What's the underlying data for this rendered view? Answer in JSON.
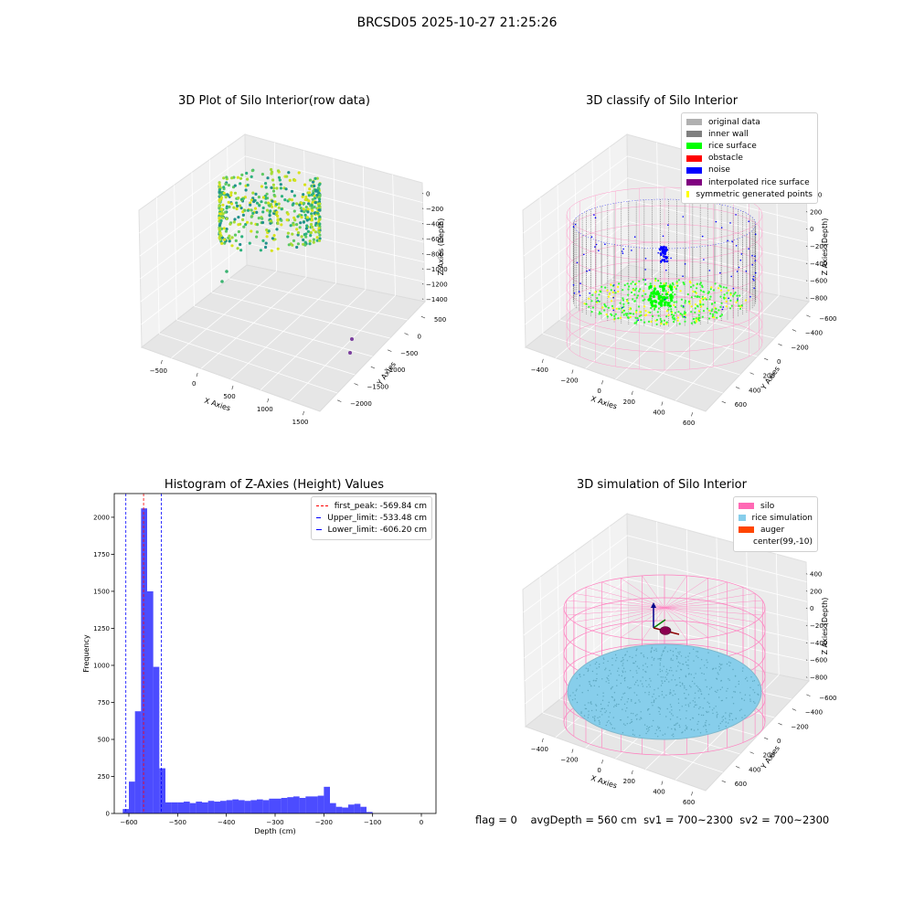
{
  "suptitle": "BRCSD05 2025-10-27 21:25:26",
  "panels": {
    "raw": {
      "title": "3D Plot of Silo Interior(row data)",
      "xlabel": "X Axies",
      "ylabel": "Y Axies",
      "zlabel": "Z Axies (Depth)",
      "xticks": [
        "−500",
        "0",
        "500",
        "1000",
        "1500"
      ],
      "yticks": [
        "500",
        "0",
        "−500",
        "−1000",
        "−1500",
        "−2000"
      ],
      "zticks": [
        "0",
        "−200",
        "−400",
        "−600",
        "−800",
        "−1000",
        "−1200",
        "−1400"
      ]
    },
    "classify": {
      "title": "3D classify of Silo Interior",
      "xlabel": "X Axies",
      "ylabel": "Y Axies",
      "zlabel": "Z Axies (Depth)",
      "xticks": [
        "−400",
        "−200",
        "0",
        "200",
        "400",
        "600"
      ],
      "yticks": [
        "600",
        "400",
        "200",
        "0",
        "−200",
        "−400",
        "−600"
      ],
      "zticks": [
        "400",
        "200",
        "0",
        "−200",
        "−400",
        "−600",
        "−800"
      ],
      "legend": [
        {
          "label": "original data",
          "color": "#b0b0b0"
        },
        {
          "label": "inner wall",
          "color": "#808080"
        },
        {
          "label": "rice surface",
          "color": "#00ff00"
        },
        {
          "label": "obstacle",
          "color": "#ff0000"
        },
        {
          "label": "noise",
          "color": "#0000ff"
        },
        {
          "label": "interpolated rice surface",
          "color": "#800080"
        },
        {
          "label": "symmetric generated points",
          "color": "#ffff00"
        }
      ]
    },
    "sim": {
      "title": "3D simulation of Silo Interior",
      "xlabel": "X Axies",
      "ylabel": "Y Axies",
      "zlabel": "Z Axies (Depth)",
      "xticks": [
        "−400",
        "−200",
        "0",
        "200",
        "400",
        "600"
      ],
      "yticks": [
        "600",
        "400",
        "200",
        "0",
        "−200",
        "−400",
        "−600"
      ],
      "zticks": [
        "400",
        "200",
        "0",
        "−200",
        "−400",
        "−600",
        "−800"
      ],
      "legend": [
        {
          "label": "silo",
          "color": "#ff69b4"
        },
        {
          "label": "rice simulation",
          "color": "#87ceeb"
        },
        {
          "label": "auger",
          "color": "#ff4500"
        },
        {
          "label": "center(99,-10)",
          "color": "#ffffff"
        }
      ]
    }
  },
  "chart_data": {
    "type": "bar",
    "title": "Histogram of Z-Axies (Height) Values",
    "xlabel": "Depth (cm)",
    "ylabel": "Frequency",
    "xlim": [
      -630,
      30
    ],
    "ylim": [
      0,
      2160
    ],
    "xticks": [
      -600,
      -500,
      -400,
      -300,
      -200,
      -100,
      0
    ],
    "yticks": [
      0,
      250,
      500,
      750,
      1000,
      1250,
      1500,
      1750,
      2000
    ],
    "bin_width": 12.5,
    "bin_start": -612.5,
    "values": [
      30,
      215,
      690,
      2060,
      1500,
      990,
      305,
      75,
      75,
      75,
      80,
      70,
      80,
      75,
      85,
      80,
      85,
      90,
      95,
      90,
      85,
      90,
      95,
      90,
      100,
      100,
      105,
      110,
      115,
      105,
      115,
      115,
      120,
      180,
      70,
      45,
      40,
      60,
      65,
      45,
      10
    ],
    "bar_color": "#0000ff",
    "bar_alpha": 0.7,
    "vlines": [
      {
        "label": "first_peak: -569.84 cm",
        "x": -569.84,
        "color": "#ff0000"
      },
      {
        "label": "Upper_limit: -533.48 cm",
        "x": -533.48,
        "color": "#0000ff"
      },
      {
        "label": "Lower_limit: -606.20 cm",
        "x": -606.2,
        "color": "#0000ff"
      }
    ],
    "legend_position": "top-right"
  },
  "footer": {
    "flag": "flag = 0",
    "avg": "avgDepth = 560 cm",
    "sv1": "sv1 = 700~2300",
    "sv2": "sv2 = 700~2300"
  }
}
